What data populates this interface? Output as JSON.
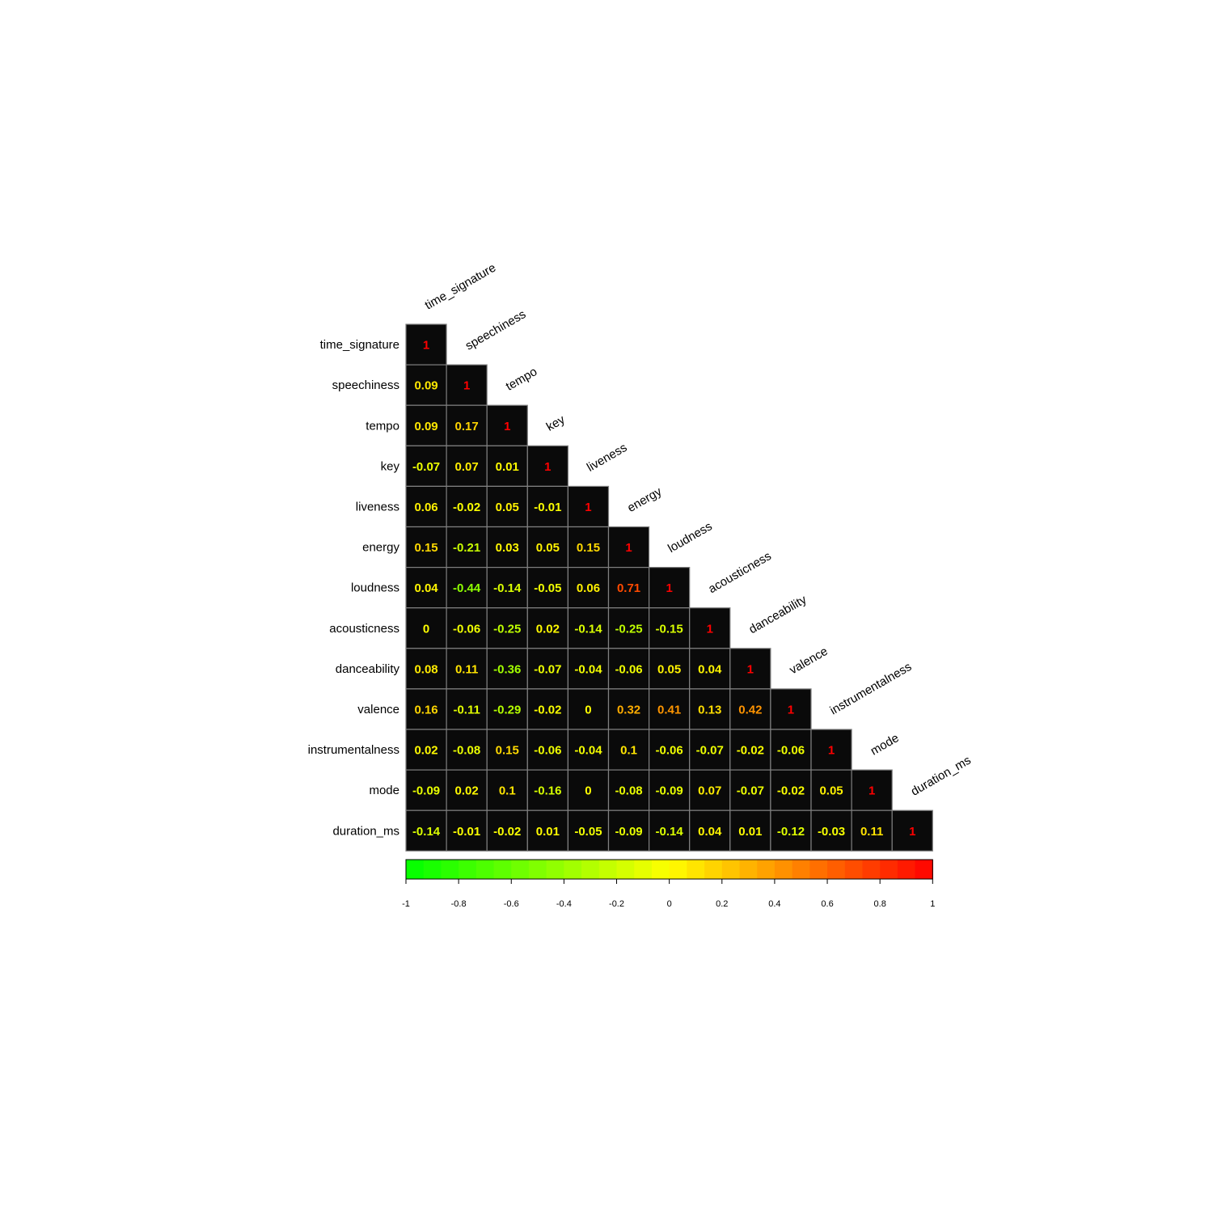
{
  "chart_data": {
    "type": "heatmap",
    "variables": [
      "time_signature",
      "speechiness",
      "tempo",
      "key",
      "liveness",
      "energy",
      "loudness",
      "acousticness",
      "danceability",
      "valence",
      "instrumentalness",
      "mode",
      "duration_ms"
    ],
    "matrix_lower": [
      [
        1
      ],
      [
        0.09,
        1
      ],
      [
        0.09,
        0.17,
        1
      ],
      [
        -0.07,
        0.07,
        0.01,
        1
      ],
      [
        0.06,
        -0.02,
        0.05,
        -0.01,
        1
      ],
      [
        0.15,
        -0.21,
        0.03,
        0.05,
        0.15,
        1
      ],
      [
        0.04,
        -0.44,
        -0.14,
        -0.05,
        0.06,
        0.71,
        1
      ],
      [
        0,
        -0.06,
        -0.25,
        0.02,
        -0.14,
        -0.25,
        -0.15,
        1
      ],
      [
        0.08,
        0.11,
        -0.36,
        -0.07,
        -0.04,
        -0.06,
        0.05,
        0.04,
        1
      ],
      [
        0.16,
        -0.11,
        -0.29,
        -0.02,
        0,
        0.32,
        0.41,
        0.13,
        0.42,
        1
      ],
      [
        0.02,
        -0.08,
        0.15,
        -0.06,
        -0.04,
        0.1,
        -0.06,
        -0.07,
        -0.02,
        -0.06,
        1
      ],
      [
        -0.09,
        0.02,
        0.1,
        -0.16,
        0,
        -0.08,
        -0.09,
        0.07,
        -0.07,
        -0.02,
        0.05,
        1
      ],
      [
        -0.14,
        -0.01,
        -0.02,
        0.01,
        -0.05,
        -0.09,
        -0.14,
        0.04,
        0.01,
        -0.12,
        -0.03,
        0.11,
        1
      ]
    ],
    "color_scale": {
      "range": [
        -1,
        1
      ],
      "colors": [
        "#00ff00",
        "#ffff00",
        "#ff0000"
      ],
      "bins": 30,
      "ticks": [
        "-1",
        "-0.8",
        "-0.6",
        "-0.4",
        "-0.2",
        "0",
        "0.2",
        "0.4",
        "0.6",
        "0.8",
        "1"
      ]
    },
    "cell_background": "#0a0a0a",
    "cell_border": "#808080",
    "title": "",
    "xlabel": "",
    "ylabel": ""
  }
}
